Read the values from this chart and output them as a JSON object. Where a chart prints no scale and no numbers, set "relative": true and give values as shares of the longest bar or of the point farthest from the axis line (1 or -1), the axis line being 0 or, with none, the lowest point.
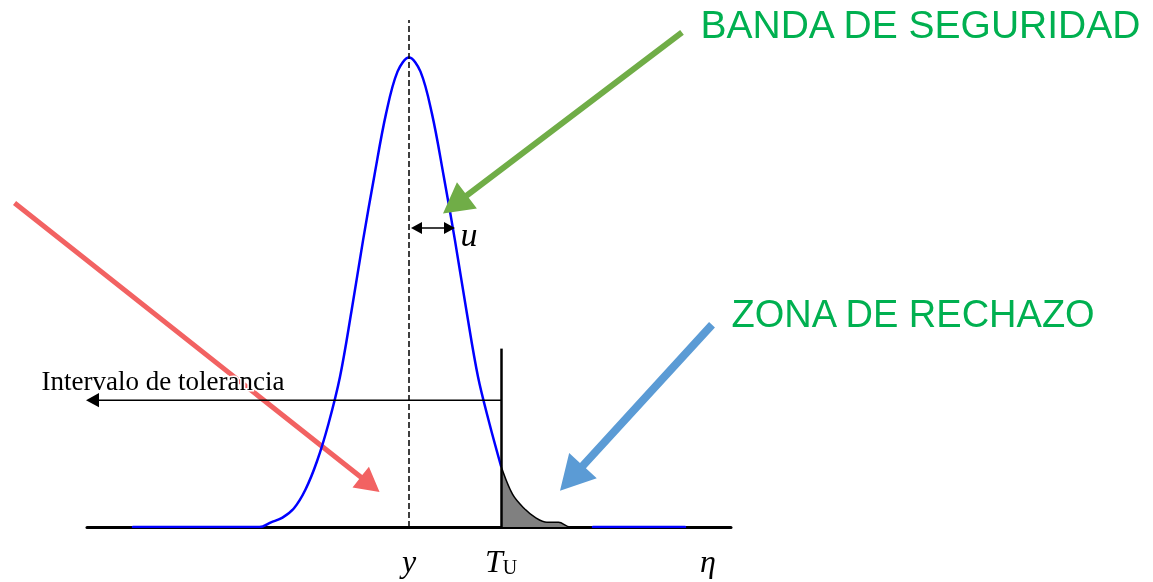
{
  "chart_data": {
    "type": "line",
    "relative": true,
    "categories": [
      null,
      null,
      null,
      null,
      null,
      null,
      null,
      null,
      null,
      null,
      null,
      null,
      null,
      null,
      null,
      null,
      null,
      null,
      null,
      null,
      null,
      null,
      null,
      null,
      null,
      null,
      null,
      null,
      "y",
      null,
      null,
      null,
      null,
      null,
      null,
      null,
      "T$_{U}$",
      null,
      null,
      null,
      null,
      null,
      null,
      null,
      null,
      null,
      null,
      null,
      null,
      null,
      null,
      null,
      null,
      null,
      "η",
      null,
      null
    ],
    "series": [
      {
        "color": "#0000ff",
        "values": [
          null,
          null,
          null,
          null,
          0,
          0,
          0,
          0,
          0,
          0,
          0,
          0,
          0,
          0,
          0,
          0,
          0.01,
          0.02,
          0.04,
          0.08,
          0.14,
          0.22,
          0.32,
          0.46,
          0.61,
          0.75,
          0.88,
          0.97,
          1,
          0.97,
          0.88,
          0.75,
          0.61,
          0.46,
          0.32,
          0.22,
          0.13,
          null,
          null,
          null,
          null,
          null,
          null,
          null,
          0,
          0,
          0,
          0,
          0,
          0,
          0,
          0,
          0,
          null,
          null,
          null,
          null
        ]
      },
      {
        "type": "area",
        "color": "#808080",
        "values": [
          null,
          null,
          null,
          null,
          null,
          null,
          null,
          null,
          null,
          null,
          null,
          null,
          null,
          null,
          null,
          null,
          null,
          null,
          null,
          null,
          null,
          null,
          null,
          null,
          null,
          null,
          null,
          null,
          null,
          null,
          null,
          null,
          null,
          null,
          null,
          null,
          0.13,
          0.07,
          0.04,
          0.02,
          0.01,
          0.01,
          0,
          0,
          0,
          null,
          null,
          null,
          null,
          null,
          null,
          null,
          null,
          null,
          null,
          null,
          null
        ]
      }
    ],
    "ref_lines": [
      {
        "axis": "x",
        "value": "y",
        "color": "#000000",
        "line_style": "dashed"
      },
      {
        "axis": "x",
        "value": "T$_{U}$",
        "color": "#000000"
      }
    ],
    "annotations": [
      "BANDA DE SEGURIDAD",
      "ZONA DE RECHAZO",
      "Intervalo de tolerancia",
      "u"
    ]
  }
}
